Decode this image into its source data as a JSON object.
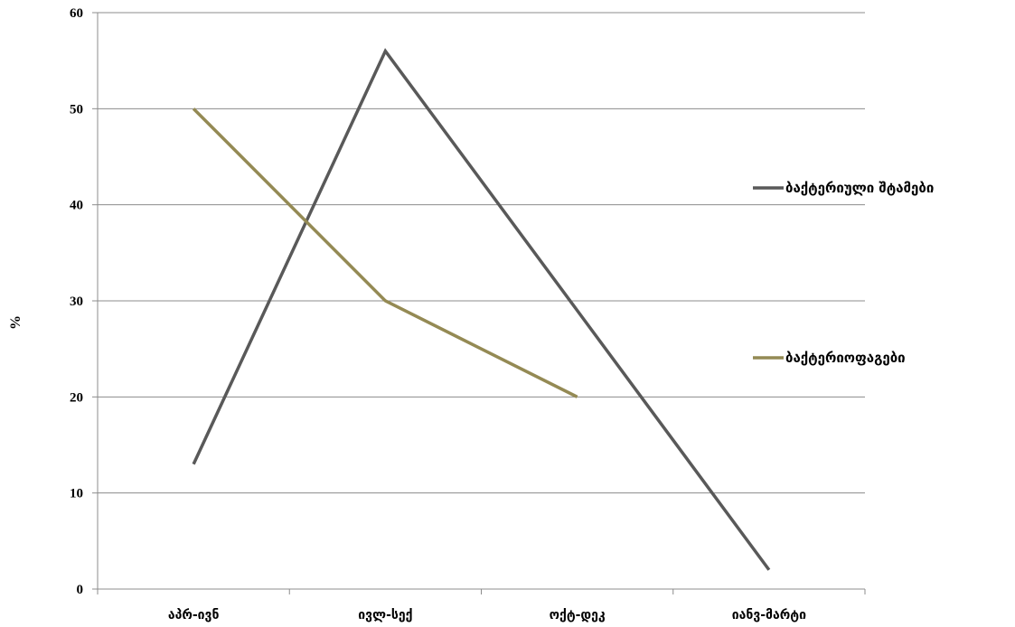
{
  "chart_data": {
    "type": "line",
    "categories": [
      "აპრ-ივნ",
      "ივლ-სექ",
      "ოქტ-დეკ",
      "იანვ-მარტი"
    ],
    "series": [
      {
        "name": "ბაქტერიული  შტამები",
        "values": [
          13,
          56,
          29,
          2
        ],
        "color": "#595959"
      },
      {
        "name": "ბაქტერიოფაგები",
        "values": [
          50,
          30,
          20,
          null
        ],
        "color": "#948A54"
      }
    ],
    "ylabel": "%",
    "ylim": [
      0,
      60
    ],
    "yticks": [
      "0",
      "10",
      "20",
      "30",
      "40",
      "50",
      "60"
    ],
    "grid": true,
    "legend_position": "right"
  }
}
